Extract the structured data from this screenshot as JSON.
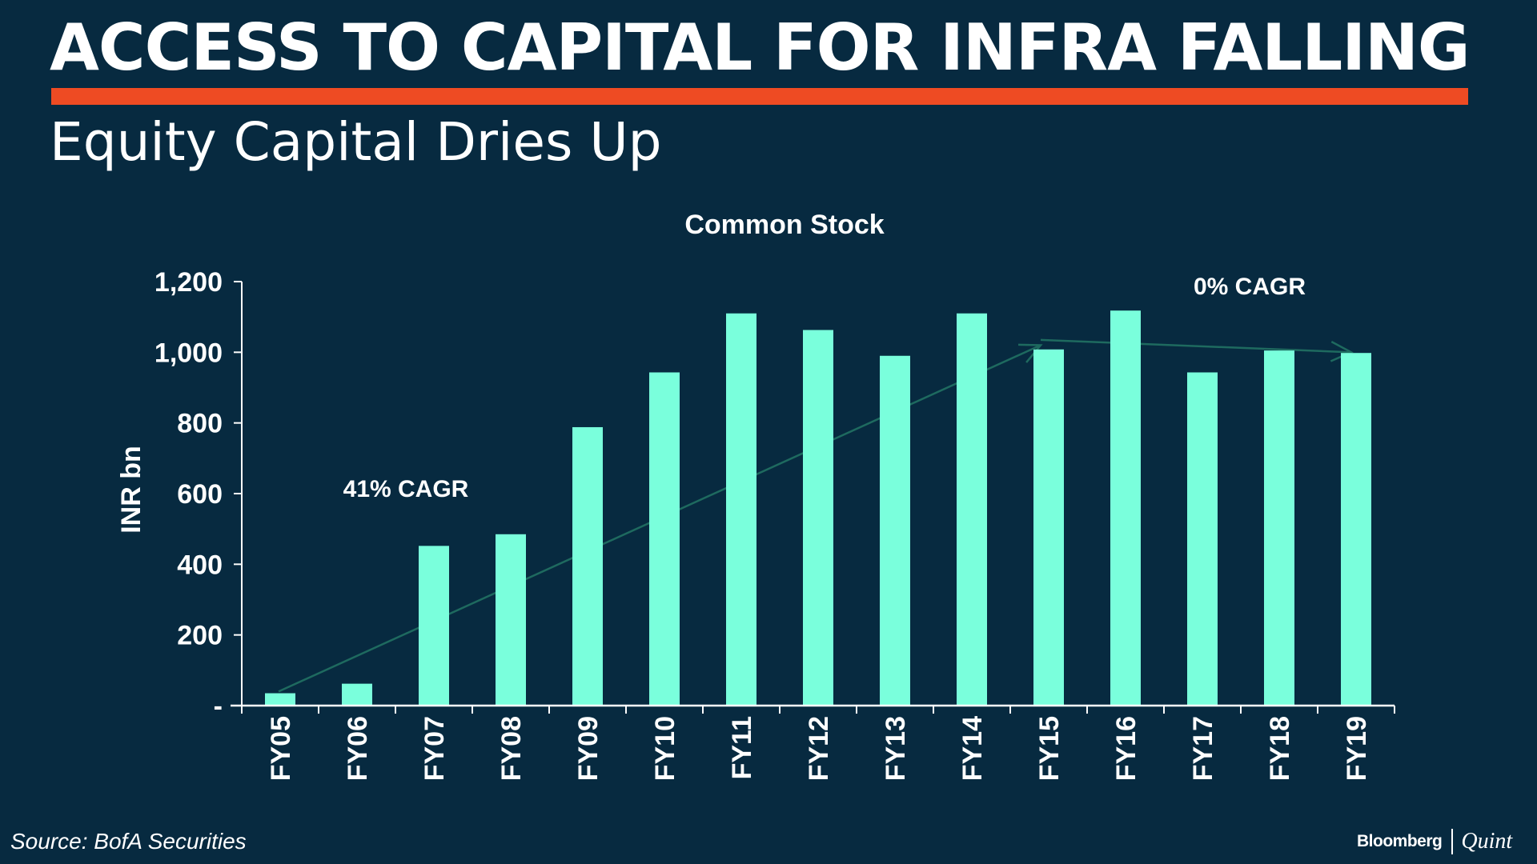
{
  "header": {
    "title": "ACCESS TO CAPITAL FOR INFRA FALLING",
    "subtitle": "Equity Capital Dries Up"
  },
  "footer": {
    "source": "Source: BofA Securities",
    "logo_primary": "Bloomberg",
    "logo_secondary": "Quint"
  },
  "colors": {
    "background": "#072a40",
    "accent": "#ee4b23",
    "bar": "#7affdc",
    "trend": "#1e6a5f",
    "text": "#ffffff"
  },
  "chart_data": {
    "type": "bar",
    "title": "Common Stock",
    "xlabel": "",
    "ylabel": "INR bn",
    "ylim": [
      0,
      1200
    ],
    "yticks": [
      0,
      200,
      400,
      600,
      800,
      1000,
      1200
    ],
    "ytick_labels": [
      "-",
      "200",
      "400",
      "600",
      "800",
      "1,000",
      "1,200"
    ],
    "grid": false,
    "legend": "none",
    "categories": [
      "FY05",
      "FY06",
      "FY07",
      "FY08",
      "FY09",
      "FY10",
      "FY11",
      "FY12",
      "FY13",
      "FY14",
      "FY15",
      "FY16",
      "FY17",
      "FY18",
      "FY19"
    ],
    "values": [
      35,
      62,
      452,
      485,
      788,
      943,
      1110,
      1063,
      990,
      1110,
      1008,
      1118,
      943,
      1005,
      998
    ],
    "annotations": [
      {
        "text": "41% CAGR",
        "trend_from": {
          "x": "FY05",
          "y": 40
        },
        "trend_to": {
          "x": "FY15",
          "y": 1020
        }
      },
      {
        "text": "0% CAGR",
        "trend_from": {
          "x": "FY15",
          "y": 1035
        },
        "trend_to": {
          "x": "FY19",
          "y": 1000
        }
      }
    ]
  }
}
